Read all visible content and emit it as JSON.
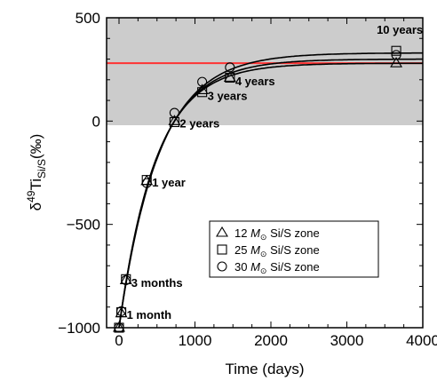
{
  "chart_data": {
    "type": "line",
    "xlabel": "Time (days)",
    "ylabel_main": "δ",
    "ylabel_sup": "49",
    "ylabel_element": "Ti",
    "ylabel_sub": "Si/S",
    "ylabel_unit": "(‰)",
    "xlim": [
      0,
      4000
    ],
    "ylim": [
      -1000,
      500
    ],
    "x_ticks": [
      0,
      1000,
      2000,
      3000,
      4000
    ],
    "x_tick_labels": [
      "0",
      "1000",
      "2000",
      "3000",
      "4000"
    ],
    "y_ticks": [
      -1000,
      -500,
      0,
      500
    ],
    "y_tick_labels": [
      "−1000",
      "−500",
      "0",
      "500"
    ],
    "shaded_region": {
      "y_from": -20,
      "y_to": 500,
      "color": "#cccccc"
    },
    "reference_line": {
      "y": 280,
      "color": "#ff3333"
    },
    "series": [
      {
        "name": "12 M⊙ Si/S zone",
        "marker": "triangle",
        "x": [
          0,
          30,
          91,
          365,
          730,
          1095,
          1460,
          3650
        ],
        "y": [
          -1000,
          -930,
          -770,
          -290,
          0,
          150,
          210,
          280
        ]
      },
      {
        "name": "25 M⊙ Si/S zone",
        "marker": "square",
        "x": [
          0,
          30,
          91,
          365,
          730,
          1095,
          1460,
          3650
        ],
        "y": [
          -1000,
          -925,
          -765,
          -285,
          -5,
          140,
          210,
          340
        ]
      },
      {
        "name": "30 M⊙ Si/S zone",
        "marker": "circle",
        "x": [
          0,
          30,
          91,
          365,
          730,
          1095,
          1460,
          3650
        ],
        "y": [
          -1000,
          -920,
          -770,
          -300,
          40,
          190,
          260,
          320
        ]
      }
    ],
    "curves": [
      {
        "asymptote": 280
      },
      {
        "asymptote": 300
      },
      {
        "asymptote": 330
      }
    ],
    "annotations": [
      {
        "text": "1 month",
        "x": 30,
        "y": -935
      },
      {
        "text": "3 months",
        "x": 91,
        "y": -780
      },
      {
        "text": "1 year",
        "x": 365,
        "y": -295
      },
      {
        "text": "2 years",
        "x": 730,
        "y": -10
      },
      {
        "text": "3 years",
        "x": 1095,
        "y": 125
      },
      {
        "text": "4 years",
        "x": 1460,
        "y": 195
      },
      {
        "text": "10 years",
        "x": 3650,
        "y": 380
      }
    ],
    "legend": {
      "placement": "lower-right",
      "entries": [
        {
          "marker": "triangle",
          "label_pre": "12 ",
          "label_m": "M",
          "label_sun": "⊙",
          "label_post": " Si/S zone"
        },
        {
          "marker": "square",
          "label_pre": "25 ",
          "label_m": "M",
          "label_sun": "⊙",
          "label_post": " Si/S zone"
        },
        {
          "marker": "circle",
          "label_pre": "30 ",
          "label_m": "M",
          "label_sun": "⊙",
          "label_post": " Si/S zone"
        }
      ]
    }
  }
}
